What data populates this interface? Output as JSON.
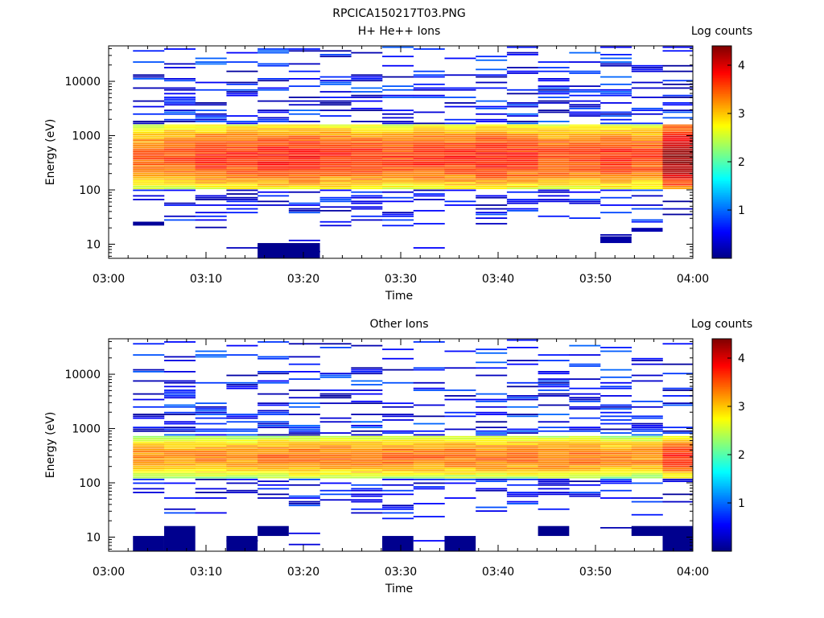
{
  "figure_title": "RPCICA150217T03.PNG",
  "colormap": [
    "#000083",
    "#0000ff",
    "#0080ff",
    "#00ffff",
    "#80ff80",
    "#ffff00",
    "#ff8000",
    "#ff0000",
    "#800000"
  ],
  "chart_data": [
    {
      "type": "heatmap",
      "title": "H+ He++ Ions",
      "xlabel": "Time",
      "ylabel": "Energy (eV)",
      "x_ticks": [
        "03:00",
        "03:10",
        "03:20",
        "03:30",
        "03:40",
        "03:50",
        "04:00"
      ],
      "xlim": [
        "03:00",
        "04:00"
      ],
      "y_ticks": [
        "10",
        "100",
        "1000",
        "10000"
      ],
      "ylim": [
        5.5,
        45000
      ],
      "y_scale": "log",
      "colorbar": {
        "label": "Log counts",
        "ticks": [
          "1",
          "2",
          "3",
          "4"
        ],
        "range": [
          0,
          4.4
        ]
      },
      "time_bins_min": [
        2.5,
        5.7,
        8.9,
        12.1,
        15.3,
        18.5,
        21.7,
        24.9,
        28.1,
        31.3,
        34.5,
        37.7,
        40.9,
        44.1,
        47.3,
        50.5,
        53.7,
        56.9,
        60.0
      ],
      "core_peak_log_counts": [
        3.5,
        3.6,
        3.7,
        3.7,
        3.8,
        3.8,
        3.7,
        3.7,
        3.6,
        3.7,
        3.7,
        3.8,
        3.7,
        3.6,
        3.6,
        3.7,
        3.6,
        4.3
      ],
      "core_energy_range_eV": [
        100,
        1600
      ],
      "low_energy_blocks": [
        {
          "t0": 15.3,
          "t1": 21.7,
          "e_low": 5.5,
          "e_high": 10.5,
          "log_counts": 0.05
        },
        {
          "t0": 2.5,
          "t1": 5.7,
          "e_low": 22,
          "e_high": 26,
          "log_counts": 0.1
        },
        {
          "t0": 50.5,
          "t1": 53.7,
          "e_low": 10.5,
          "e_high": 14,
          "log_counts": 0.15
        },
        {
          "t0": 53.7,
          "t1": 56.9,
          "e_low": 17,
          "e_high": 20,
          "log_counts": 0.2
        }
      ]
    },
    {
      "type": "heatmap",
      "title": "Other Ions",
      "xlabel": "Time",
      "ylabel": "Energy (eV)",
      "x_ticks": [
        "03:00",
        "03:10",
        "03:20",
        "03:30",
        "03:40",
        "03:50",
        "04:00"
      ],
      "xlim": [
        "03:00",
        "04:00"
      ],
      "y_ticks": [
        "10",
        "100",
        "1000",
        "10000"
      ],
      "ylim": [
        5.5,
        45000
      ],
      "y_scale": "log",
      "colorbar": {
        "label": "Log counts",
        "ticks": [
          "1",
          "2",
          "3",
          "4"
        ],
        "range": [
          0,
          4.4
        ]
      },
      "time_bins_min": [
        2.5,
        5.7,
        8.9,
        12.1,
        15.3,
        18.5,
        21.7,
        24.9,
        28.1,
        31.3,
        34.5,
        37.7,
        40.9,
        44.1,
        47.3,
        50.5,
        53.7,
        56.9,
        60.0
      ],
      "core_peak_log_counts": [
        3.3,
        3.3,
        3.3,
        3.3,
        3.4,
        3.4,
        3.4,
        3.4,
        3.4,
        3.4,
        3.4,
        3.4,
        3.4,
        3.4,
        3.4,
        3.3,
        3.3,
        3.7
      ],
      "core_energy_range_eV": [
        120,
        750
      ],
      "low_energy_blocks": [
        {
          "t0": 2.5,
          "t1": 5.7,
          "e_low": 5.5,
          "e_high": 10.5,
          "log_counts": 0.05
        },
        {
          "t0": 5.7,
          "t1": 8.9,
          "e_low": 5.5,
          "e_high": 16,
          "log_counts": 0.05
        },
        {
          "t0": 12.1,
          "t1": 15.3,
          "e_low": 5.5,
          "e_high": 10.5,
          "log_counts": 0.05
        },
        {
          "t0": 15.3,
          "t1": 18.5,
          "e_low": 10.5,
          "e_high": 16,
          "log_counts": 0.05
        },
        {
          "t0": 28.1,
          "t1": 31.3,
          "e_low": 5.5,
          "e_high": 10.5,
          "log_counts": 0.05
        },
        {
          "t0": 34.5,
          "t1": 37.7,
          "e_low": 5.5,
          "e_high": 10.5,
          "log_counts": 0.05
        },
        {
          "t0": 44.1,
          "t1": 47.3,
          "e_low": 10.5,
          "e_high": 16,
          "log_counts": 0.05
        },
        {
          "t0": 53.7,
          "t1": 56.9,
          "e_low": 10.5,
          "e_high": 16,
          "log_counts": 0.05
        },
        {
          "t0": 56.9,
          "t1": 60.0,
          "e_low": 5.5,
          "e_high": 16,
          "log_counts": 0.05
        }
      ]
    }
  ]
}
